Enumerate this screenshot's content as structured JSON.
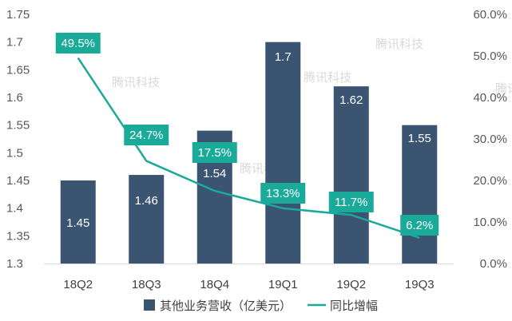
{
  "chart_data": {
    "type": "bar",
    "categories": [
      "18Q2",
      "18Q3",
      "18Q4",
      "19Q1",
      "19Q2",
      "19Q3"
    ],
    "series": [
      {
        "name": "其他业务营收（亿美元）",
        "type": "bar",
        "axis": "left",
        "color": "#3b5472",
        "values": [
          1.45,
          1.46,
          1.54,
          1.7,
          1.62,
          1.55
        ],
        "labels": [
          "1.45",
          "1.46",
          "1.54",
          "1.7",
          "1.62",
          "1.55"
        ]
      },
      {
        "name": "同比增幅",
        "type": "line",
        "axis": "right",
        "color": "#1aaa9a",
        "values": [
          49.5,
          24.7,
          17.5,
          13.3,
          11.7,
          6.2
        ],
        "labels": [
          "49.5%",
          "24.7%",
          "17.5%",
          "13.3%",
          "11.7%",
          "6.2%"
        ]
      }
    ],
    "y_left": {
      "min": 1.3,
      "max": 1.75,
      "ticks": [
        "1.3",
        "1.35",
        "1.4",
        "1.45",
        "1.5",
        "1.55",
        "1.6",
        "1.65",
        "1.7",
        "1.75"
      ]
    },
    "y_right": {
      "min": 0,
      "max": 60,
      "ticks": [
        "0.0%",
        "10.0%",
        "20.0%",
        "30.0%",
        "40.0%",
        "50.0%",
        "60.0%"
      ]
    },
    "legend_position": "bottom",
    "grid": false
  },
  "watermark": "腾讯科技"
}
